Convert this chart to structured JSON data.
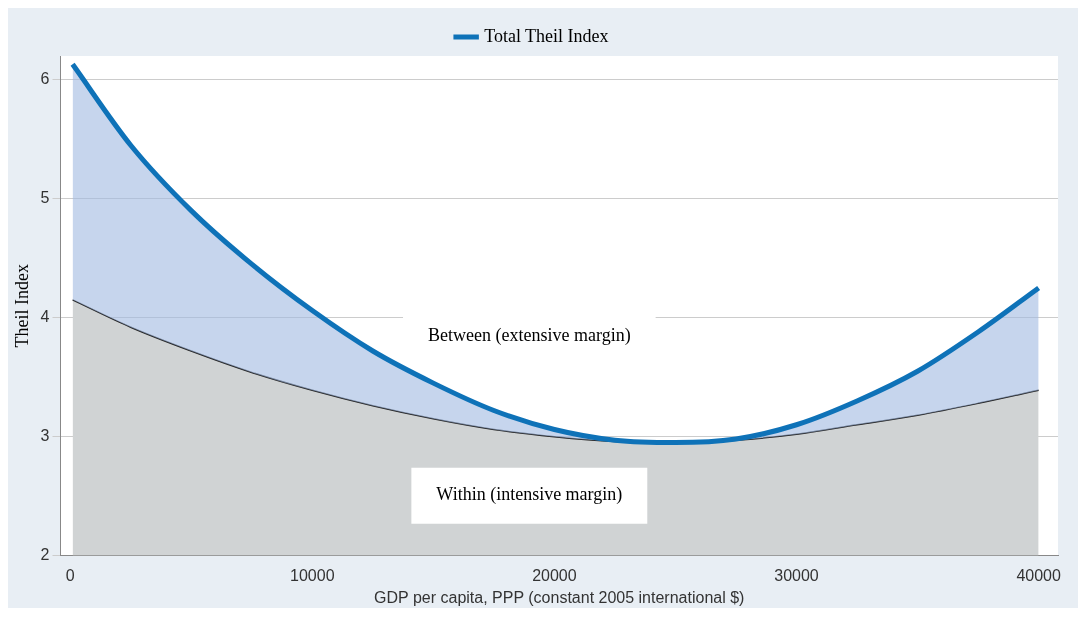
{
  "chart_data": {
    "type": "area",
    "xlabel": "GDP per capita, PPP (constant 2005 international $)",
    "ylabel": "Theil Index",
    "xlim": [
      -400,
      40800
    ],
    "xticks": [
      0,
      10000,
      20000,
      30000,
      40000
    ],
    "ylim": [
      2,
      6.2
    ],
    "yticks": [
      2,
      3,
      4,
      5,
      6
    ],
    "grid": "y",
    "legend": "top",
    "x": [
      100,
      2500,
      5000,
      7500,
      10000,
      12500,
      15000,
      17500,
      20000,
      22500,
      25000,
      27500,
      30000,
      32500,
      35000,
      37500,
      40000
    ],
    "series": [
      {
        "color": "#d0d3d4",
        "values": [
          4.15,
          3.92,
          3.72,
          3.54,
          3.39,
          3.26,
          3.15,
          3.06,
          3.0,
          2.96,
          2.95,
          2.97,
          3.02,
          3.1,
          3.18,
          3.28,
          3.39
        ]
      },
      {
        "name": "Total Theil Index",
        "color": "#0e72b8",
        "values": [
          6.13,
          5.45,
          4.9,
          4.45,
          4.06,
          3.72,
          3.45,
          3.22,
          3.06,
          2.97,
          2.95,
          2.98,
          3.1,
          3.3,
          3.55,
          3.88,
          4.25
        ]
      }
    ],
    "annotations": [
      "Between (extensive margin)",
      "Within (intensive margin)"
    ]
  }
}
